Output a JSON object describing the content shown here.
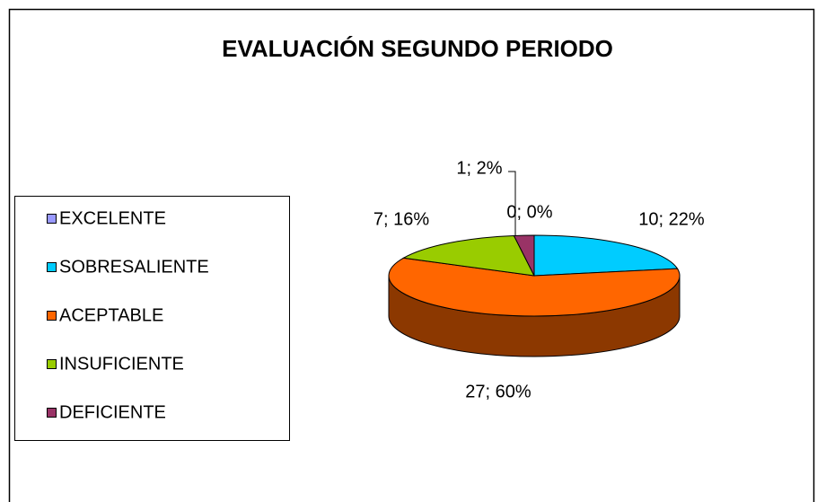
{
  "chart_data": {
    "type": "pie",
    "title": "EVALUACIÓN SEGUNDO PERIODO",
    "categories": [
      "EXCELENTE",
      "SOBRESALIENTE",
      "ACEPTABLE",
      "INSUFICIENTE",
      "DEFICIENTE"
    ],
    "values": [
      0,
      10,
      27,
      7,
      1
    ],
    "value_labels": [
      "0; 0%",
      "10; 22%",
      "27; 60%",
      "7; 16%",
      "1; 2%"
    ],
    "colors": [
      "#9999ff",
      "#00ccff",
      "#ff6600",
      "#99cc00",
      "#993366"
    ],
    "legend": "left"
  }
}
